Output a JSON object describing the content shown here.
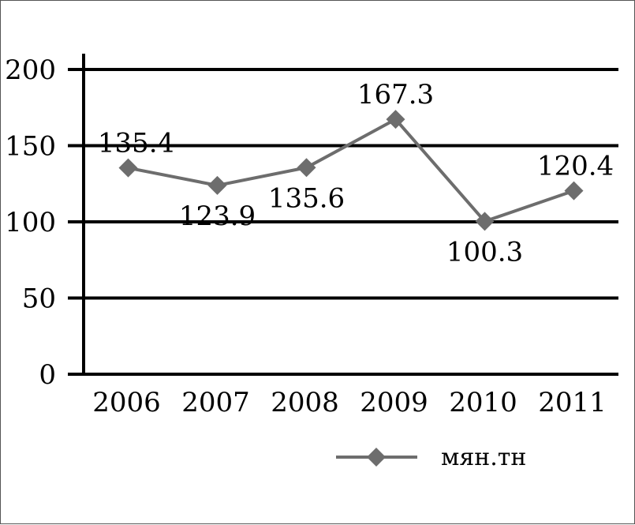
{
  "chart_data": {
    "type": "line",
    "categories": [
      "2006",
      "2007",
      "2008",
      "2009",
      "2010",
      "2011"
    ],
    "series": [
      {
        "name": "мян.тн",
        "values": [
          135.4,
          123.9,
          135.6,
          167.3,
          100.3,
          120.4
        ],
        "data_labels": [
          "135.4",
          "123.9",
          "135.6",
          "167.3",
          "100.3",
          "120.4"
        ],
        "label_position": [
          "above",
          "below",
          "below",
          "above",
          "below",
          "above"
        ]
      }
    ],
    "title": "",
    "xlabel": "",
    "ylabel": "",
    "ylim": [
      0,
      200
    ],
    "yticks": [
      0,
      50,
      100,
      150,
      200
    ],
    "ytick_labels": [
      "0",
      "50",
      "100",
      "150",
      "200"
    ],
    "grid": true,
    "legend_position": "bottom-right",
    "colors": {
      "series": "#6d6d6d",
      "grid": "#000000",
      "axis": "#000000"
    },
    "marker": "diamond"
  }
}
